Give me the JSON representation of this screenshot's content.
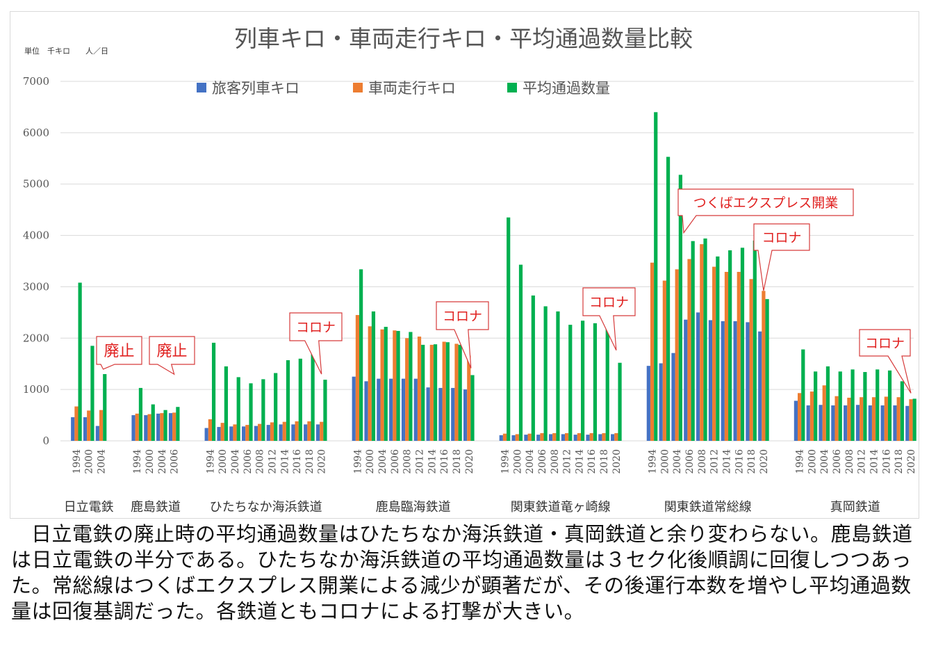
{
  "chart_data": {
    "type": "bar",
    "title": "列車キロ・車両走行キロ・平均通過数量比較",
    "units_note": "単位　千キロ　　人／日",
    "ylim": [
      0,
      7000
    ],
    "yticks": [
      0,
      1000,
      2000,
      3000,
      4000,
      5000,
      6000,
      7000
    ],
    "grid": true,
    "legend_position": "top",
    "series": [
      {
        "name": "旅客列車キロ",
        "color": "#4472C4"
      },
      {
        "name": "車両走行キロ",
        "color": "#ED7D31"
      },
      {
        "name": "平均通過数量",
        "color": "#00B050"
      }
    ],
    "groups": [
      {
        "name": "日立電鉄",
        "points": [
          {
            "year": "1994",
            "values": [
              460,
              670,
              3080
            ]
          },
          {
            "year": "2000",
            "values": [
              460,
              590,
              1850
            ]
          },
          {
            "year": "2004",
            "values": [
              290,
              600,
              1300
            ]
          }
        ]
      },
      {
        "name": "鹿島鉄道",
        "points": [
          {
            "year": "1994",
            "values": [
              500,
              530,
              1030
            ]
          },
          {
            "year": "2000",
            "values": [
              500,
              520,
              710
            ]
          },
          {
            "year": "2004",
            "values": [
              530,
              540,
              600
            ]
          },
          {
            "year": "2006",
            "values": [
              540,
              550,
              660
            ]
          }
        ]
      },
      {
        "name": "ひたちなか海浜鉄道",
        "points": [
          {
            "year": "1994",
            "values": [
              250,
              420,
              1910
            ]
          },
          {
            "year": "2000",
            "values": [
              270,
              350,
              1450
            ]
          },
          {
            "year": "2004",
            "values": [
              280,
              320,
              1240
            ]
          },
          {
            "year": "2006",
            "values": [
              280,
              310,
              1120
            ]
          },
          {
            "year": "2008",
            "values": [
              290,
              330,
              1200
            ]
          },
          {
            "year": "2012",
            "values": [
              310,
              360,
              1320
            ]
          },
          {
            "year": "2014",
            "values": [
              320,
              370,
              1570
            ]
          },
          {
            "year": "2016",
            "values": [
              320,
              380,
              1600
            ]
          },
          {
            "year": "2018",
            "values": [
              320,
              380,
              1690
            ]
          },
          {
            "year": "2020",
            "values": [
              320,
              370,
              1190
            ]
          }
        ]
      },
      {
        "name": "鹿島臨海鉄道",
        "points": [
          {
            "year": "1994",
            "values": [
              1250,
              2450,
              3340
            ]
          },
          {
            "year": "2000",
            "values": [
              1160,
              2230,
              2520
            ]
          },
          {
            "year": "2004",
            "values": [
              1210,
              2170,
              2220
            ]
          },
          {
            "year": "2006",
            "values": [
              1210,
              2150,
              2140
            ]
          },
          {
            "year": "2008",
            "values": [
              1210,
              2000,
              2120
            ]
          },
          {
            "year": "2012",
            "values": [
              1210,
              2030,
              1870
            ]
          },
          {
            "year": "2014",
            "values": [
              1040,
              1870,
              1880
            ]
          },
          {
            "year": "2016",
            "values": [
              1030,
              1930,
              1920
            ]
          },
          {
            "year": "2018",
            "values": [
              1030,
              1890,
              1870
            ]
          },
          {
            "year": "2020",
            "values": [
              1000,
              1660,
              1280
            ]
          }
        ]
      },
      {
        "name": "関東鉄道竜ヶ崎線",
        "points": [
          {
            "year": "1994",
            "values": [
              110,
              140,
              4350
            ]
          },
          {
            "year": "2000",
            "values": [
              110,
              130,
              3430
            ]
          },
          {
            "year": "2004",
            "values": [
              120,
              140,
              2830
            ]
          },
          {
            "year": "2006",
            "values": [
              120,
              150,
              2620
            ]
          },
          {
            "year": "2008",
            "values": [
              130,
              150,
              2520
            ]
          },
          {
            "year": "2012",
            "values": [
              130,
              150,
              2260
            ]
          },
          {
            "year": "2014",
            "values": [
              120,
              150,
              2340
            ]
          },
          {
            "year": "2016",
            "values": [
              120,
              150,
              2290
            ]
          },
          {
            "year": "2018",
            "values": [
              130,
              150,
              2260
            ]
          },
          {
            "year": "2020",
            "values": [
              130,
              150,
              1520
            ]
          }
        ]
      },
      {
        "name": "関東鉄道常総線",
        "points": [
          {
            "year": "1994",
            "values": [
              1460,
              3470,
              6400
            ]
          },
          {
            "year": "2000",
            "values": [
              1510,
              3120,
              5530
            ]
          },
          {
            "year": "2004",
            "values": [
              1710,
              3340,
              5180
            ]
          },
          {
            "year": "2006",
            "values": [
              2360,
              3540,
              3890
            ]
          },
          {
            "year": "2008",
            "values": [
              2500,
              3830,
              3940
            ]
          },
          {
            "year": "2012",
            "values": [
              2350,
              3390,
              3590
            ]
          },
          {
            "year": "2014",
            "values": [
              2330,
              3290,
              3710
            ]
          },
          {
            "year": "2016",
            "values": [
              2330,
              3290,
              3760
            ]
          },
          {
            "year": "2018",
            "values": [
              2310,
              3150,
              3900
            ]
          },
          {
            "year": "2020",
            "values": [
              2130,
              2920,
              2760
            ]
          }
        ]
      },
      {
        "name": "真岡鉄道",
        "points": [
          {
            "year": "1994",
            "values": [
              780,
              930,
              1780
            ]
          },
          {
            "year": "2000",
            "values": [
              690,
              960,
              1350
            ]
          },
          {
            "year": "2004",
            "values": [
              700,
              1080,
              1450
            ]
          },
          {
            "year": "2006",
            "values": [
              690,
              870,
              1350
            ]
          },
          {
            "year": "2008",
            "values": [
              690,
              840,
              1390
            ]
          },
          {
            "year": "2012",
            "values": [
              700,
              850,
              1340
            ]
          },
          {
            "year": "2014",
            "values": [
              690,
              850,
              1390
            ]
          },
          {
            "year": "2016",
            "values": [
              690,
              860,
              1370
            ]
          },
          {
            "year": "2018",
            "values": [
              690,
              850,
              1160
            ]
          },
          {
            "year": "2020",
            "values": [
              680,
              810,
              820
            ]
          }
        ]
      }
    ],
    "annotations": [
      {
        "text": "廃止",
        "group": 0,
        "point": 2
      },
      {
        "text": "廃止",
        "group": 1,
        "point": 3
      },
      {
        "text": "コロナ",
        "group": 2,
        "point": 9
      },
      {
        "text": "コロナ",
        "group": 3,
        "point": 9
      },
      {
        "text": "コロナ",
        "group": 4,
        "point": 9
      },
      {
        "text": "つくばエクスプレス開業",
        "group": 5,
        "point": 3
      },
      {
        "text": "コロナ",
        "group": 5,
        "point": 9
      },
      {
        "text": "コロナ",
        "group": 6,
        "point": 9
      }
    ]
  },
  "caption": "日立電鉄の廃止時の平均通過数量はひたちなか海浜鉄道・真岡鉄道と余り変わらない。鹿島鉄道は日立電鉄の半分である。ひたちなか海浜鉄道の平均通過数量は３セク化後順調に回復しつつあった。常総線はつくばエクスプレス開業による減少が顕著だが、その後運行本数を増やし平均通過数量は回復基調だった。各鉄道ともコロナによる打撃が大きい。"
}
